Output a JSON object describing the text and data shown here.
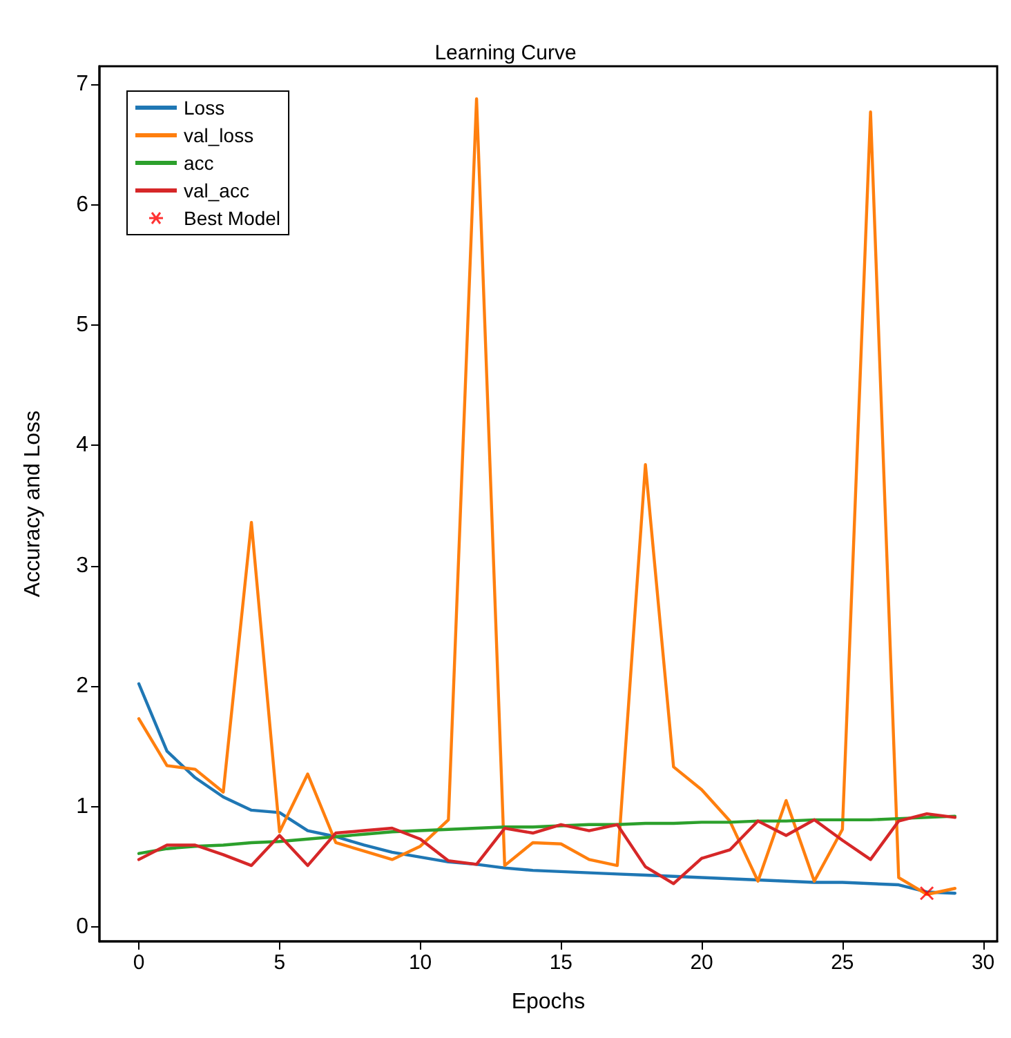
{
  "chart_data": {
    "type": "line",
    "title": "Learning Curve",
    "xlabel": "Epochs",
    "ylabel": "Accuracy and Loss",
    "x": [
      0,
      1,
      2,
      3,
      4,
      5,
      6,
      7,
      8,
      9,
      10,
      11,
      12,
      13,
      14,
      15,
      16,
      17,
      18,
      19,
      20,
      21,
      22,
      23,
      24,
      25,
      26,
      27,
      28,
      29
    ],
    "xlim": [
      -1.4,
      30.5
    ],
    "xticks": [
      0,
      5,
      10,
      15,
      20,
      25,
      30
    ],
    "ylim": [
      -0.12,
      7.15
    ],
    "yticks": [
      0,
      1,
      2,
      3,
      4,
      5,
      6,
      7
    ],
    "grid": false,
    "legend": "top left",
    "marker": "none",
    "line_style": "solid",
    "series": [
      {
        "name": "Loss",
        "color": "#1f77b4",
        "values": [
          2.02,
          1.46,
          1.24,
          1.08,
          0.97,
          0.95,
          0.8,
          0.75,
          0.68,
          0.62,
          0.58,
          0.54,
          0.52,
          0.49,
          0.47,
          0.46,
          0.45,
          0.44,
          0.43,
          0.42,
          0.41,
          0.4,
          0.39,
          0.38,
          0.37,
          0.37,
          0.36,
          0.35,
          0.29,
          0.28
        ]
      },
      {
        "name": "val_loss",
        "color": "#ff7f0e",
        "values": [
          1.73,
          1.34,
          1.31,
          1.12,
          3.36,
          0.79,
          1.27,
          0.7,
          0.63,
          0.56,
          0.67,
          0.89,
          6.88,
          0.51,
          0.7,
          0.69,
          0.56,
          0.51,
          3.84,
          1.33,
          1.14,
          0.88,
          0.38,
          1.05,
          0.38,
          0.81,
          6.77,
          0.41,
          0.27,
          0.32
        ]
      },
      {
        "name": "acc",
        "color": "#2ca02c",
        "values": [
          0.61,
          0.65,
          0.67,
          0.68,
          0.7,
          0.71,
          0.73,
          0.75,
          0.77,
          0.79,
          0.8,
          0.81,
          0.82,
          0.83,
          0.83,
          0.84,
          0.85,
          0.85,
          0.86,
          0.86,
          0.87,
          0.87,
          0.88,
          0.88,
          0.89,
          0.89,
          0.89,
          0.9,
          0.91,
          0.92
        ]
      },
      {
        "name": "val_acc",
        "color": "#d62728",
        "values": [
          0.56,
          0.68,
          0.68,
          0.6,
          0.51,
          0.76,
          0.51,
          0.78,
          0.8,
          0.82,
          0.73,
          0.55,
          0.52,
          0.82,
          0.78,
          0.85,
          0.8,
          0.85,
          0.5,
          0.36,
          0.57,
          0.64,
          0.88,
          0.76,
          0.89,
          0.72,
          0.56,
          0.88,
          0.94,
          0.91
        ]
      },
      {
        "name": "Best Model",
        "type": "scatter",
        "marker": "cross",
        "color": "#ff0000",
        "x": [
          28
        ],
        "values": [
          0.28
        ]
      }
    ]
  }
}
